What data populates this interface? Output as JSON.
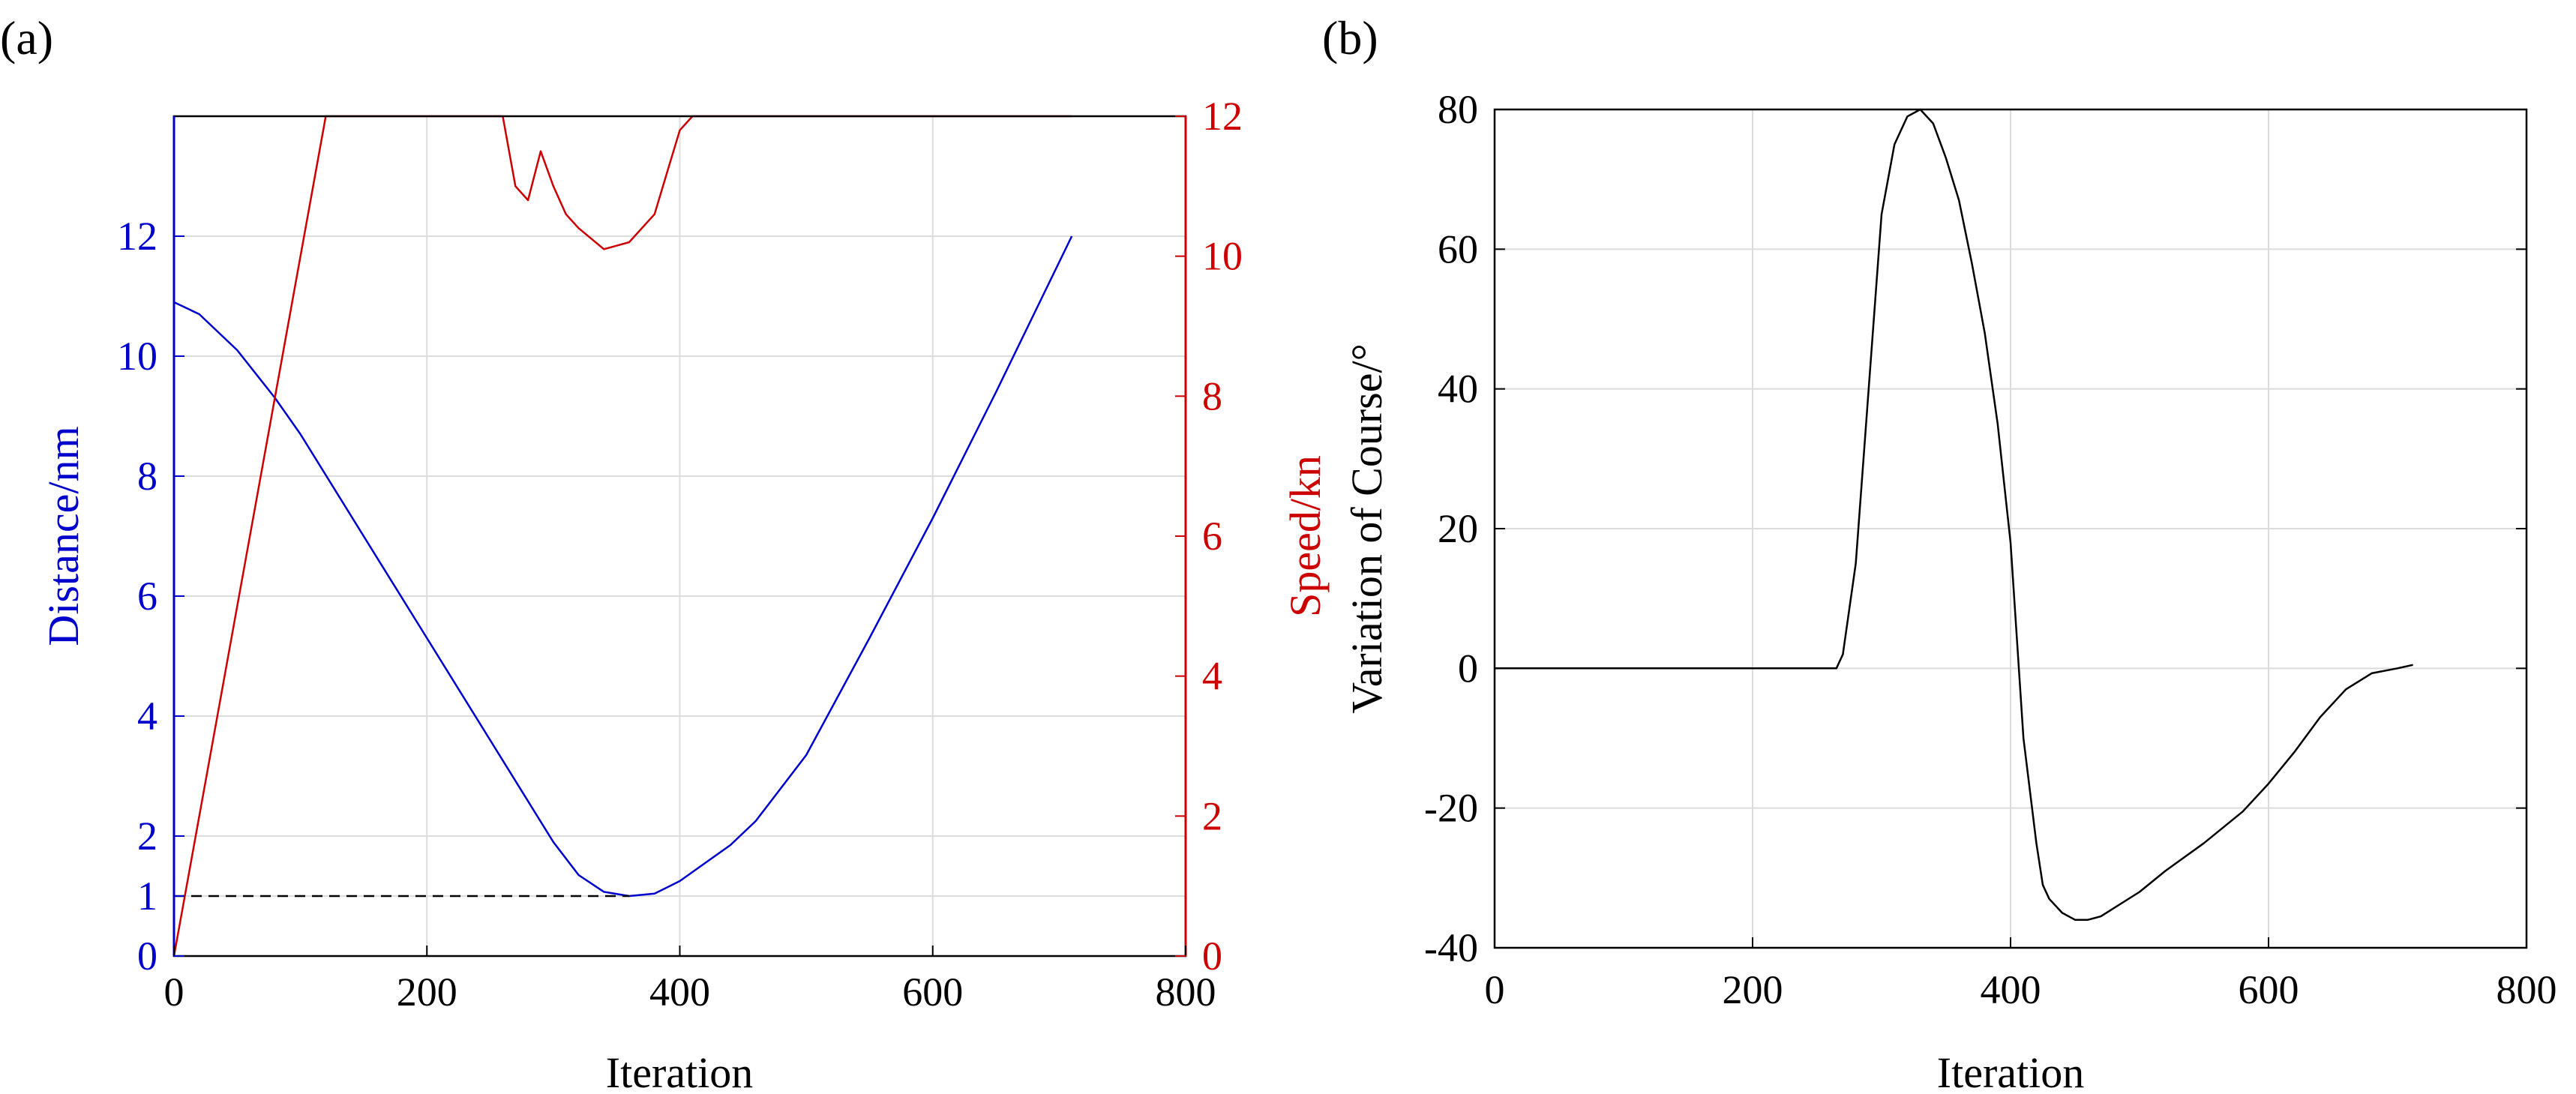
{
  "chart_data": [
    {
      "type": "line",
      "panel_label": "(a)",
      "xlabel": "Iteration",
      "ylabel_left": "Distance/nm",
      "ylabel_right": "Speed/kn",
      "xlim": [
        0,
        800
      ],
      "ylim_left": [
        0,
        14
      ],
      "ylim_right": [
        0,
        12
      ],
      "x_ticks": [
        0,
        200,
        400,
        600,
        800
      ],
      "y_ticks_left": [
        0,
        1,
        2,
        4,
        6,
        8,
        10,
        12
      ],
      "y_ticks_right": [
        0,
        2,
        4,
        6,
        8,
        10,
        12
      ],
      "grid": true,
      "colors": {
        "distance": "#0000cc",
        "speed": "#cc0000",
        "threshold": "#000000"
      },
      "series": [
        {
          "axis": "left",
          "color": "#0000cc",
          "x": [
            0,
            20,
            50,
            80,
            100,
            150,
            200,
            250,
            300,
            320,
            340,
            360,
            380,
            400,
            420,
            440,
            460,
            500,
            550,
            600,
            650,
            710
          ],
          "y": [
            10.9,
            10.7,
            10.1,
            9.3,
            8.7,
            7.0,
            5.3,
            3.6,
            1.9,
            1.35,
            1.07,
            1.0,
            1.04,
            1.25,
            1.55,
            1.85,
            2.25,
            3.35,
            5.3,
            7.3,
            9.4,
            12.0
          ]
        },
        {
          "axis": "right",
          "color": "#cc0000",
          "x": [
            0,
            120,
            260,
            270,
            280,
            290,
            300,
            310,
            320,
            340,
            350,
            360,
            370,
            380,
            390,
            400,
            410,
            710
          ],
          "y": [
            0,
            12,
            12,
            11.0,
            10.8,
            11.5,
            11.0,
            10.6,
            10.4,
            10.1,
            10.15,
            10.2,
            10.4,
            10.6,
            11.2,
            11.8,
            12,
            12
          ]
        },
        {
          "axis": "left",
          "color": "#000000",
          "dashed": true,
          "x": [
            0,
            360
          ],
          "y": [
            1,
            1
          ]
        }
      ]
    },
    {
      "type": "line",
      "panel_label": "(b)",
      "xlabel": "Iteration",
      "ylabel": "Variation of Course/°",
      "xlim": [
        0,
        800
      ],
      "ylim": [
        -40,
        80
      ],
      "x_ticks": [
        0,
        200,
        400,
        600,
        800
      ],
      "y_ticks": [
        -40,
        -20,
        0,
        20,
        40,
        60,
        80
      ],
      "grid": true,
      "series": [
        {
          "color": "#000000",
          "x": [
            0,
            265,
            270,
            280,
            290,
            300,
            310,
            320,
            330,
            340,
            350,
            360,
            370,
            380,
            390,
            400,
            410,
            420,
            425,
            430,
            440,
            450,
            460,
            470,
            500,
            520,
            550,
            580,
            600,
            620,
            640,
            660,
            680,
            700,
            712
          ],
          "y": [
            0,
            0,
            2,
            15,
            40,
            65,
            75,
            79,
            80,
            78,
            73,
            67,
            58,
            48,
            35,
            18,
            -10,
            -25,
            -31,
            -33,
            -35,
            -36,
            -36,
            -35.5,
            -32,
            -29,
            -25,
            -20.5,
            -16.5,
            -12,
            -7,
            -3,
            -0.7,
            0,
            0.5
          ]
        }
      ]
    }
  ]
}
